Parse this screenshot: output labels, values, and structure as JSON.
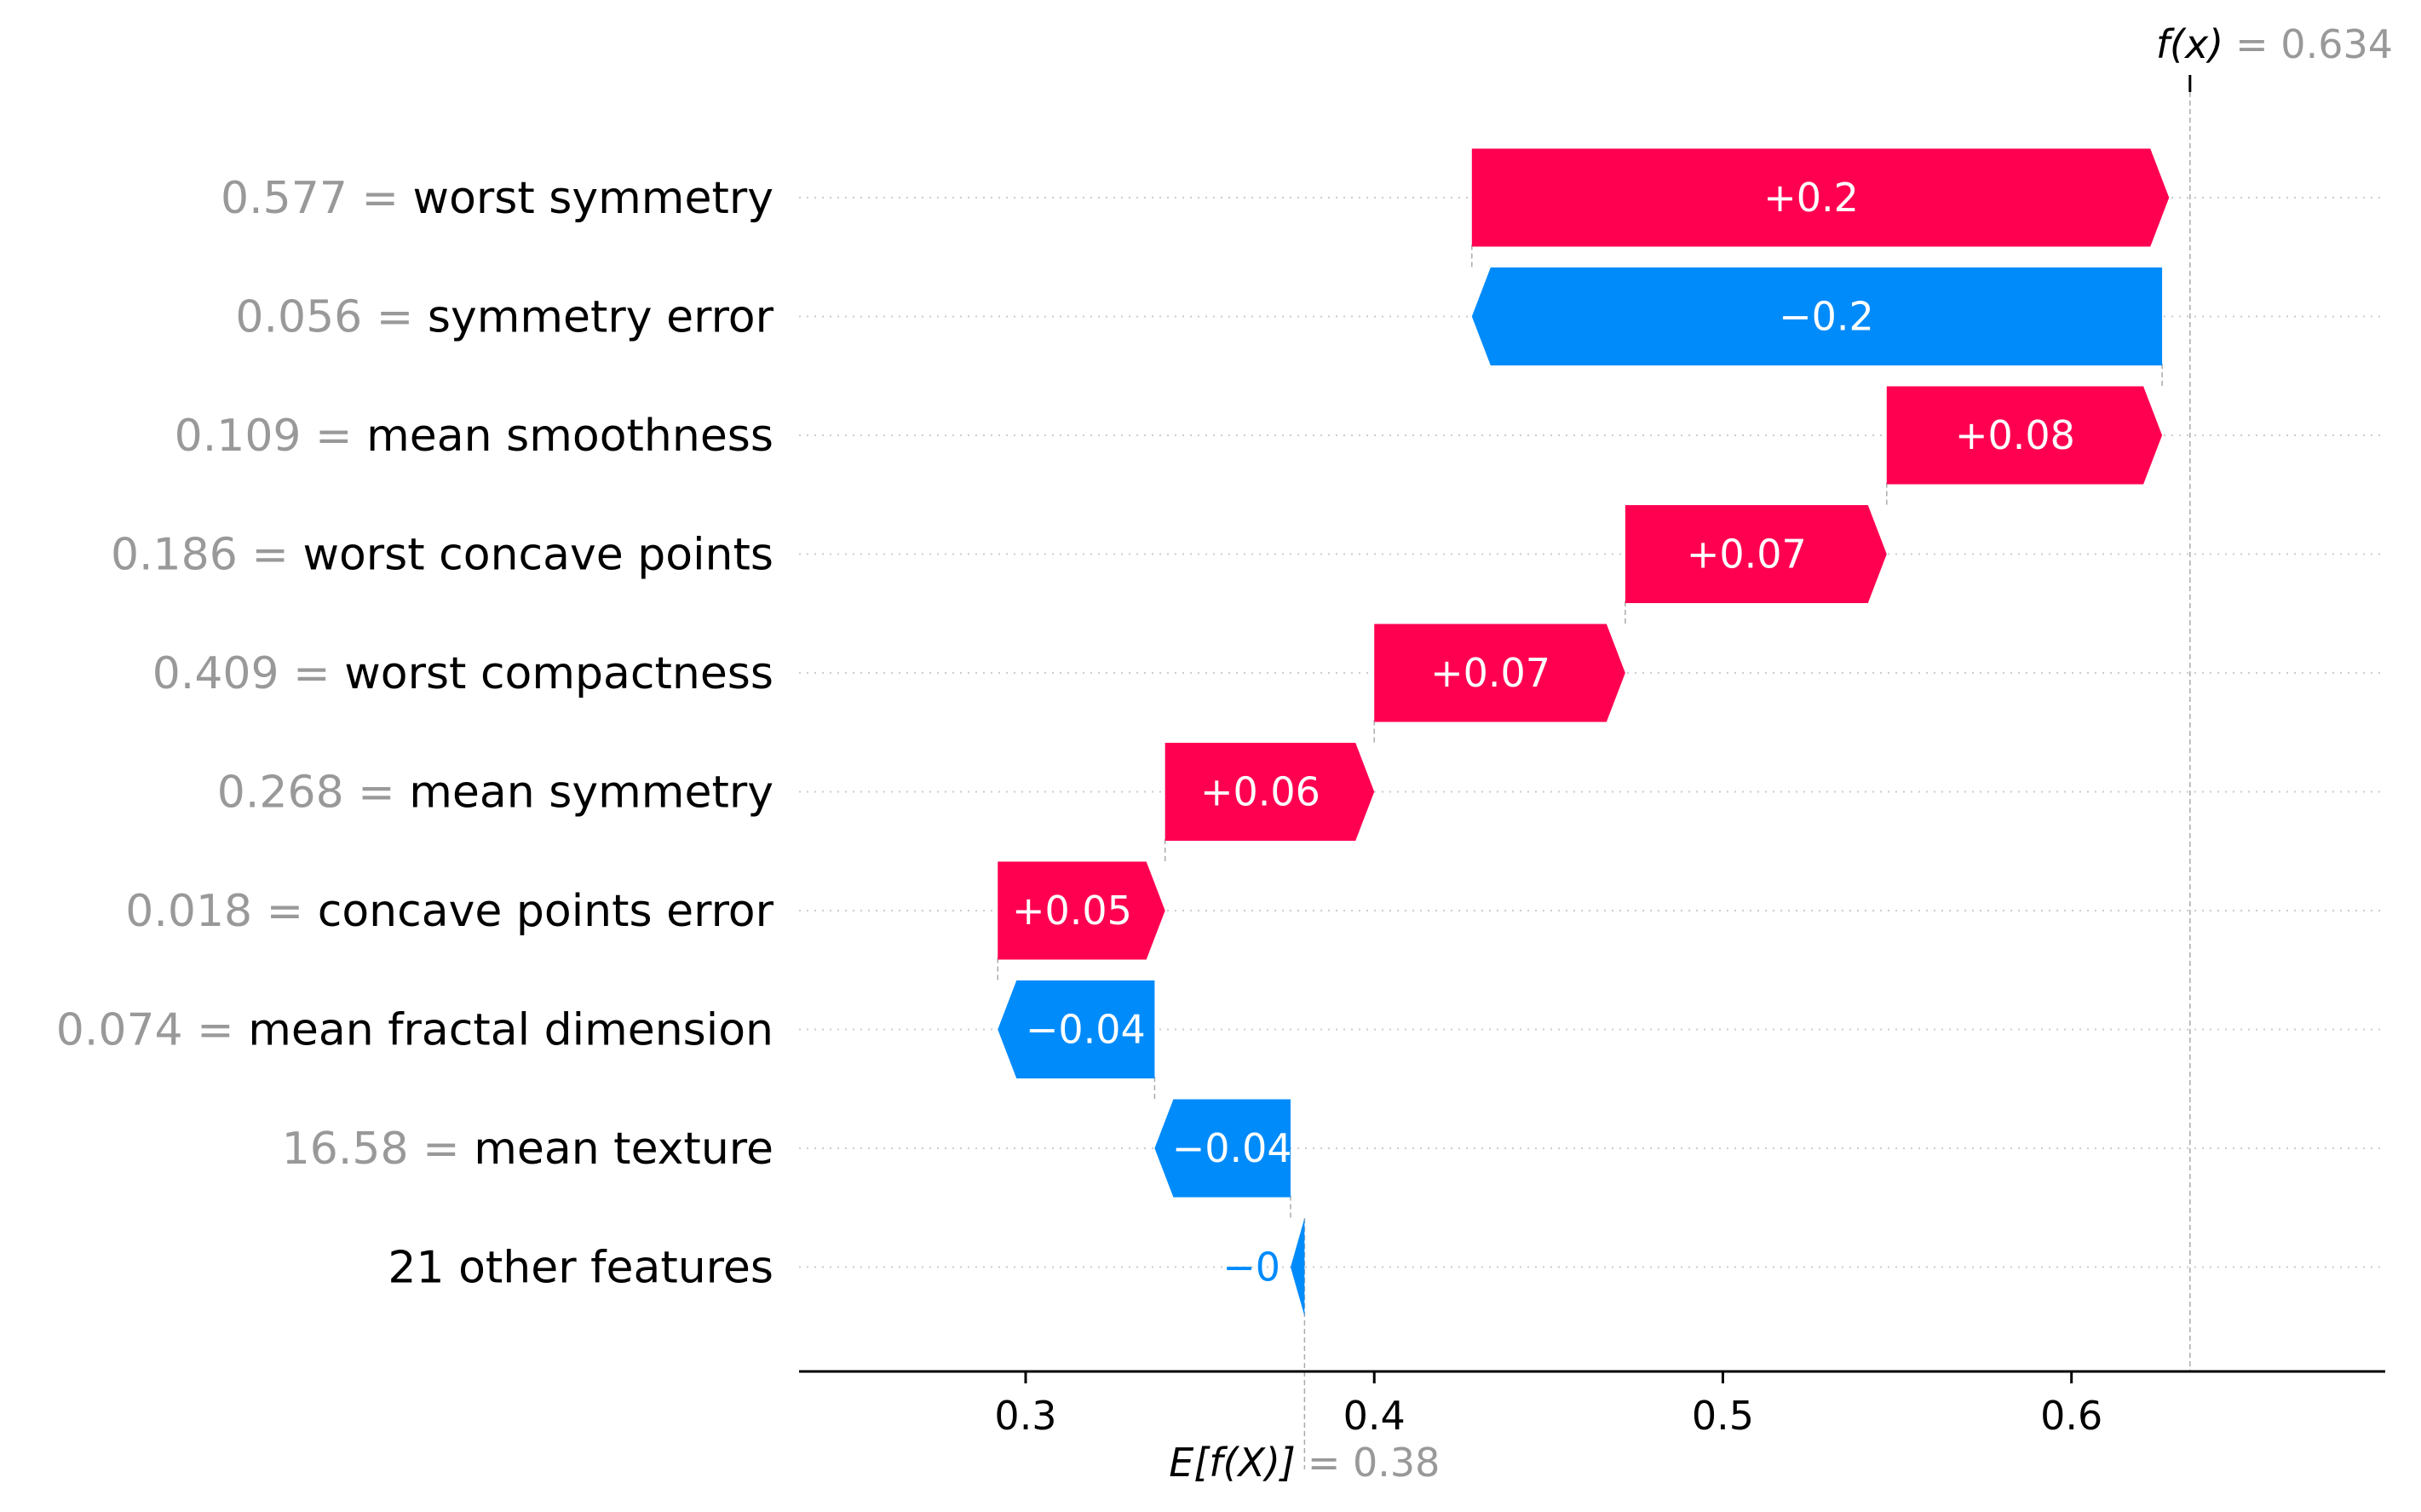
{
  "chart_data": {
    "type": "waterfall",
    "base_value": 0.38,
    "output_value": 0.634,
    "output_label": "f(x)",
    "output_value_text": "= 0.634",
    "base_label": "E[f(X)]",
    "base_value_text": "= 0.38",
    "xlim": [
      0.235,
      0.69
    ],
    "xticks": [
      0.3,
      0.4,
      0.5,
      0.6
    ],
    "xtick_labels": [
      "0.3",
      "0.4",
      "0.5",
      "0.6"
    ],
    "colors": {
      "positive": "#ff0051",
      "negative": "#008bfb",
      "muted": "#999999",
      "grid": "#cccccc"
    },
    "features": [
      {
        "value": "0.577 =",
        "name": "worst symmetry",
        "contribution": 0.2,
        "label": "+0.2"
      },
      {
        "value": "0.056 =",
        "name": "symmetry error",
        "contribution": -0.198,
        "label": "−0.2"
      },
      {
        "value": "0.109 =",
        "name": "mean smoothness",
        "contribution": 0.079,
        "label": "+0.08"
      },
      {
        "value": "0.186 =",
        "name": "worst concave points",
        "contribution": 0.075,
        "label": "+0.07"
      },
      {
        "value": "0.409 =",
        "name": "worst compactness",
        "contribution": 0.072,
        "label": "+0.07"
      },
      {
        "value": "0.268 =",
        "name": "mean symmetry",
        "contribution": 0.06,
        "label": "+0.06"
      },
      {
        "value": "0.018 =",
        "name": "concave points error",
        "contribution": 0.048,
        "label": "+0.05"
      },
      {
        "value": "0.074 =",
        "name": "mean fractal dimension",
        "contribution": -0.045,
        "label": "−0.04"
      },
      {
        "value": "16.58 =",
        "name": "mean texture",
        "contribution": -0.039,
        "label": "−0.04"
      },
      {
        "value": "",
        "name": "21 other features",
        "contribution": -0.004,
        "label": "−0"
      }
    ]
  }
}
